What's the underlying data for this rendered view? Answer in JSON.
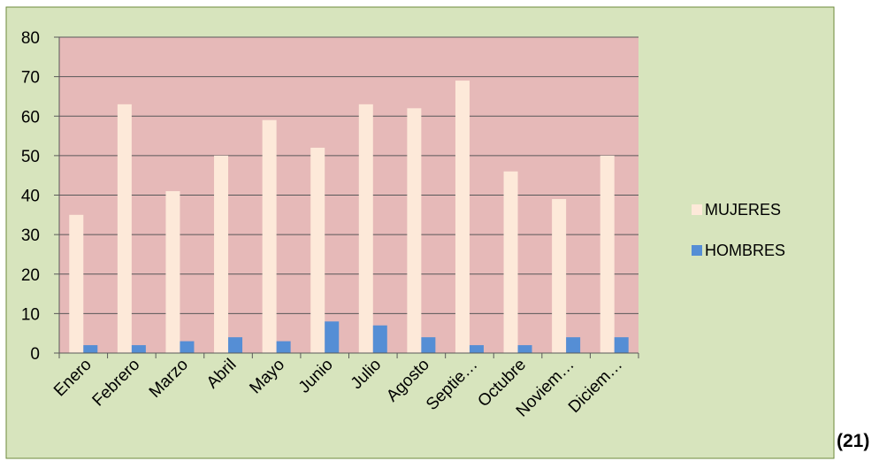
{
  "figure_label": "(21)",
  "colors": {
    "frame_bg": "#d7e4bd",
    "frame_border": "#6c8a3b",
    "plot_bg": "#e6b9b8",
    "grid": "#595959",
    "mujeres": "#fde9d9",
    "hombres": "#558ed5"
  },
  "chart_data": {
    "type": "bar",
    "title": "",
    "xlabel": "",
    "ylabel": "",
    "ylim": [
      0,
      80
    ],
    "yticks": [
      0,
      10,
      20,
      30,
      40,
      50,
      60,
      70,
      80
    ],
    "grid": true,
    "legend_position": "right",
    "categories": [
      "Enero",
      "Febrero",
      "Marzo",
      "Abril",
      "Mayo",
      "Junio",
      "Julio",
      "Agosto",
      "Septie…",
      "Octubre",
      "Noviem…",
      "Diciem…"
    ],
    "series": [
      {
        "name": "MUJERES",
        "values": [
          35,
          63,
          41,
          50,
          59,
          52,
          63,
          62,
          69,
          46,
          39,
          50
        ]
      },
      {
        "name": "HOMBRES",
        "values": [
          2,
          2,
          3,
          4,
          3,
          8,
          7,
          4,
          2,
          2,
          4,
          4
        ]
      }
    ]
  }
}
